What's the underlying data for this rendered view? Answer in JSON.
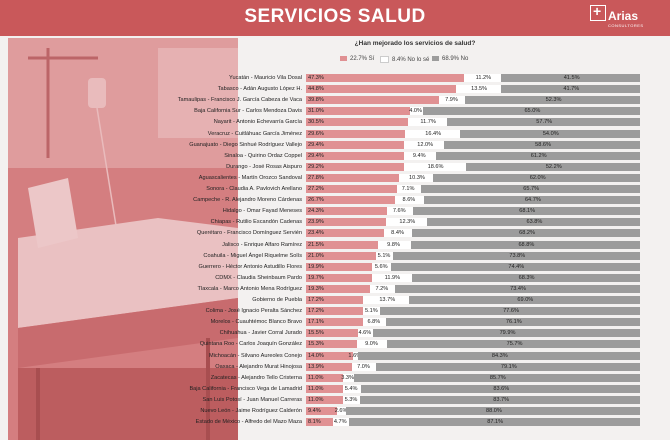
{
  "header": {
    "title": "SERVICIOS SALUD",
    "logo_text": "Arias",
    "logo_sub": "CONSULTORES"
  },
  "colors": {
    "si": "#e09193",
    "no_lo_se": "#ffffff",
    "no": "#9c9c9c",
    "header": "#c9585a"
  },
  "chart_data": {
    "type": "bar",
    "orientation": "horizontal",
    "stacked": true,
    "percent": true,
    "title": "¿Han mejorado los servicios de salud?",
    "legend_position": "top",
    "categories": [
      "Yucatán - Mauricio Vila Dosal",
      "Tabasco - Adán Augusto López H.",
      "Tamaulipas - Francisco J. García Cabeza de Vaca",
      "Baja California Sur - Carlos Mendoza Davis",
      "Nayarit - Antonio Echevarría García",
      "Veracruz - Cuitláhuac García Jiménez",
      "Guanajuato - Diego Sinhué Rodríguez Vallejo",
      "Sinaloa - Quirino Ordaz Coppel",
      "Durango - José Rosas Aispuro",
      "Aguascalientes - Martín Orozco Sandoval",
      "Sonora - Claudia A. Pavlovich Arellano",
      "Campeche - R. Alejandro Moreno Cárdenas",
      "Hidalgo - Omar Fayad Meneses",
      "Chiapas - Rutilio Escandón Cadenas",
      "Querétaro - Francisco Domínguez Servién",
      "Jalisco - Enrique Alfaro Ramírez",
      "Coahuila - Miguel Ángel Riquelme Solís",
      "Guerrero - Héctor Antonio Astudillo Flores",
      "CDMX - Claudia Sheinbaum Pardo",
      "Tlaxcala - Marco Antonio Mena Rodríguez",
      "Gobierno de Puebla",
      "Colima - José Ignacio Peralta Sánchez",
      "Morelos - Cuauhtémoc Blanco Bravo",
      "Chihuahua - Javier Corral Jurado",
      "Quintana Roo - Carlos Joaquín González",
      "Michoacán - Silvano Aureoles Conejo",
      "Oaxaca - Alejandro Murat Hinojosa",
      "Zacatecas - Alejandro Tello Cristerna",
      "Baja California - Francisco Vega de Lamadrid",
      "San Luis Potosí - Juan Manuel Carreras",
      "Nuevo León - Jaime Rodríguez Calderón",
      "Estado de México - Alfredo del Mazo Maza"
    ],
    "series": [
      {
        "name": "22.7% Sí",
        "color": "#e09193",
        "values": [
          47.3,
          44.8,
          39.8,
          31.0,
          30.5,
          29.6,
          29.4,
          29.4,
          29.2,
          27.8,
          27.2,
          26.7,
          24.3,
          23.9,
          23.4,
          21.5,
          21.0,
          19.9,
          19.7,
          19.3,
          17.2,
          17.2,
          17.1,
          15.5,
          15.3,
          14.0,
          13.9,
          11.0,
          11.0,
          11.0,
          9.4,
          8.1
        ]
      },
      {
        "name": "8.4% No lo sé",
        "color": "#ffffff",
        "values": [
          11.2,
          13.5,
          7.9,
          4.0,
          11.7,
          16.4,
          12.0,
          9.4,
          18.6,
          10.3,
          7.1,
          8.6,
          7.6,
          12.3,
          8.4,
          9.8,
          5.1,
          5.6,
          11.9,
          7.2,
          13.7,
          5.1,
          6.8,
          4.6,
          9.0,
          1.6,
          7.0,
          3.3,
          5.4,
          5.3,
          2.6,
          4.7
        ]
      },
      {
        "name": "68.9% No",
        "color": "#9c9c9c",
        "values": [
          41.5,
          41.7,
          52.3,
          65.0,
          57.7,
          54.0,
          58.6,
          61.2,
          52.2,
          62.0,
          65.7,
          64.7,
          68.1,
          63.8,
          68.2,
          68.8,
          73.8,
          74.4,
          68.3,
          73.4,
          69.0,
          77.6,
          76.1,
          79.9,
          75.7,
          84.3,
          79.1,
          85.7,
          83.6,
          83.7,
          88.0,
          87.1
        ]
      }
    ],
    "value_labels": {
      "si": [
        "47.3%",
        "44.8%",
        "39.8%",
        "31.0%",
        "30.5%",
        "29.6%",
        "29.4%",
        "29.4%",
        "29.2%",
        "27.8%",
        "27.2%",
        "26.7%",
        "24.3%",
        "23.9%",
        "23.4%",
        "21.5%",
        "21.0%",
        "19.9%",
        "19.7%",
        "19.3%",
        "17.2%",
        "17.2%",
        "17.1%",
        "15.5%",
        "15.3%",
        "14.0%",
        "13.9%",
        "11.0%",
        "11.0%",
        "11.0%",
        "9.4%",
        "8.1%"
      ],
      "no_lo_se": [
        "11.2%",
        "13.5%",
        "7.9%",
        "4.0%",
        "11.7%",
        "16.4%",
        "12.0%",
        "9.4%",
        "18.6%",
        "10.3%",
        "7.1%",
        "8.6%",
        "7.6%",
        "12.3%",
        "8.4%",
        "9.8%",
        "5.1%",
        "5.6%",
        "11.9%",
        "7.2%",
        "13.7%",
        "5.1%",
        "6.8%",
        "4.6%",
        "9.0%",
        "1.6%",
        "7.0%",
        "3.3%",
        "5.4%",
        "5.3%",
        "2.6%",
        "4.7%"
      ],
      "no": [
        "41.5%",
        "41.7%",
        "52.3%",
        "65.0%",
        "57.7%",
        "54.0%",
        "58.6%",
        "61.2%",
        "52.2%",
        "62.0%",
        "65.7%",
        "64.7%",
        "68.1%",
        "63.8%",
        "68.2%",
        "68.8%",
        "73.8%",
        "74.4%",
        "68.3%",
        "73.4%",
        "69.0%",
        "77.6%",
        "76.1%",
        "79.9%",
        "75.7%",
        "84.3%",
        "79.1%",
        "85.7%",
        "83.6%",
        "83.7%",
        "88.0%",
        "87.1%"
      ]
    }
  }
}
